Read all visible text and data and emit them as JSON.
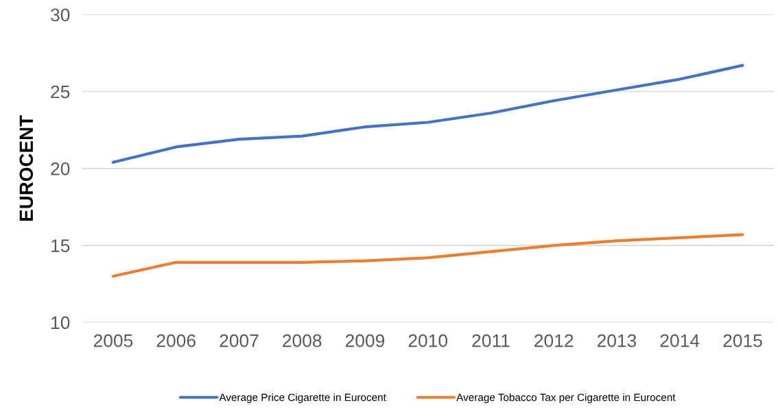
{
  "chart_data": {
    "type": "line",
    "ylabel": "EUROCENT",
    "categories": [
      "2005",
      "2006",
      "2007",
      "2008",
      "2009",
      "2010",
      "2011",
      "2012",
      "2013",
      "2014",
      "2015"
    ],
    "series": [
      {
        "name": "Average Price Cigarette in Eurocent",
        "color": "#4472c4",
        "values": [
          20.4,
          21.4,
          21.9,
          22.1,
          22.7,
          23.0,
          23.6,
          24.4,
          25.1,
          25.8,
          26.7
        ]
      },
      {
        "name": "Average Tobacco Tax per Cigarette in Eurocent",
        "color": "#ed7d31",
        "values": [
          13.0,
          13.9,
          13.9,
          13.9,
          14.0,
          14.2,
          14.6,
          15.0,
          15.3,
          15.5,
          15.7
        ]
      }
    ],
    "ylim": [
      10,
      30
    ],
    "yticks": [
      10,
      15,
      20,
      25,
      30
    ],
    "grid": "y",
    "legend": "bottom",
    "marker": "none",
    "line_style": "solid"
  }
}
